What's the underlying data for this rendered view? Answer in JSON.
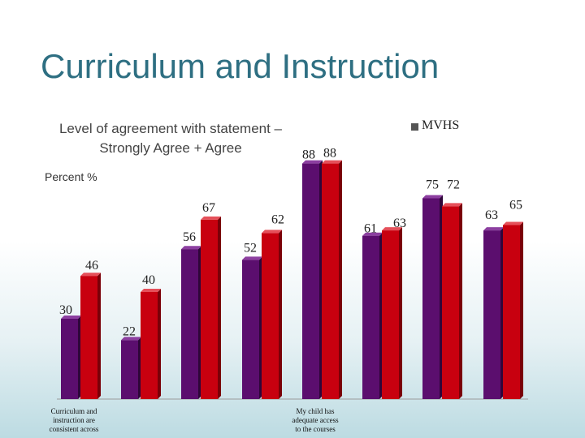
{
  "slide": {
    "title": "Curriculum and Instruction"
  },
  "legend": {
    "label": "MVHS"
  },
  "colors": {
    "purple": "#5b0e6e",
    "red": "#c8000f",
    "title": "#2e6f82"
  },
  "chart_data": {
    "type": "bar",
    "title": "Level of agreement with statement – Strongly Agree + Agree",
    "ylabel": "Percent %",
    "ylim": [
      0,
      100
    ],
    "grid": false,
    "legend_position": "top-right",
    "categories": [
      "Curriculum and instruction are consistent across",
      "",
      "",
      "",
      "My child has adequate access to the courses",
      "",
      "",
      ""
    ],
    "series": [
      {
        "name": "",
        "color": "#5b0e6e",
        "values": [
          30,
          22,
          56,
          52,
          88,
          61,
          75,
          63
        ]
      },
      {
        "name": "MVHS",
        "color": "#c8000f",
        "values": [
          46,
          40,
          67,
          62,
          88,
          63,
          72,
          65
        ]
      }
    ]
  }
}
